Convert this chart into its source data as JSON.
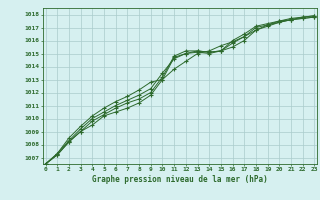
{
  "x": [
    0,
    1,
    2,
    3,
    4,
    5,
    6,
    7,
    8,
    9,
    10,
    11,
    12,
    13,
    14,
    15,
    16,
    17,
    18,
    19,
    20,
    21,
    22,
    23
  ],
  "line1": [
    1006.5,
    1007.2,
    1008.2,
    1009.0,
    1009.5,
    1010.2,
    1010.5,
    1010.8,
    1011.2,
    1011.8,
    1013.0,
    1014.7,
    1015.0,
    1015.2,
    1015.1,
    1015.2,
    1016.0,
    1016.5,
    1017.1,
    1017.3,
    1017.5,
    1017.6,
    1017.7,
    1017.8
  ],
  "line2": [
    1006.5,
    1007.2,
    1008.2,
    1009.0,
    1009.8,
    1010.3,
    1010.8,
    1011.2,
    1011.5,
    1012.0,
    1013.2,
    1014.8,
    1015.2,
    1015.2,
    1015.1,
    1015.2,
    1015.8,
    1016.3,
    1017.0,
    1017.2,
    1017.4,
    1017.6,
    1017.8,
    1017.9
  ],
  "line3": [
    1006.5,
    1007.3,
    1008.3,
    1009.2,
    1010.0,
    1010.5,
    1011.0,
    1011.4,
    1011.8,
    1012.3,
    1013.5,
    1014.6,
    1015.0,
    1015.1,
    1015.0,
    1015.2,
    1015.5,
    1016.0,
    1016.8,
    1017.1,
    1017.4,
    1017.6,
    1017.7,
    1017.8
  ],
  "line4": [
    1006.5,
    1007.3,
    1008.5,
    1009.4,
    1010.2,
    1010.8,
    1011.3,
    1011.7,
    1012.2,
    1012.8,
    1013.0,
    1013.8,
    1014.4,
    1015.0,
    1015.2,
    1015.6,
    1015.9,
    1016.3,
    1016.8,
    1017.2,
    1017.5,
    1017.7,
    1017.8,
    1017.9
  ],
  "ylabel_values": [
    1007,
    1008,
    1009,
    1010,
    1011,
    1012,
    1013,
    1014,
    1015,
    1016,
    1017,
    1018
  ],
  "xlabel": "Graphe pression niveau de la mer (hPa)",
  "line_color": "#2d6a2d",
  "bg_color": "#d6f0f0",
  "plot_bg": "#d6f0f0",
  "grid_color": "#aacccc",
  "ylim_min": 1006.5,
  "ylim_max": 1018.5,
  "xlim_min": -0.2,
  "xlim_max": 23.2
}
